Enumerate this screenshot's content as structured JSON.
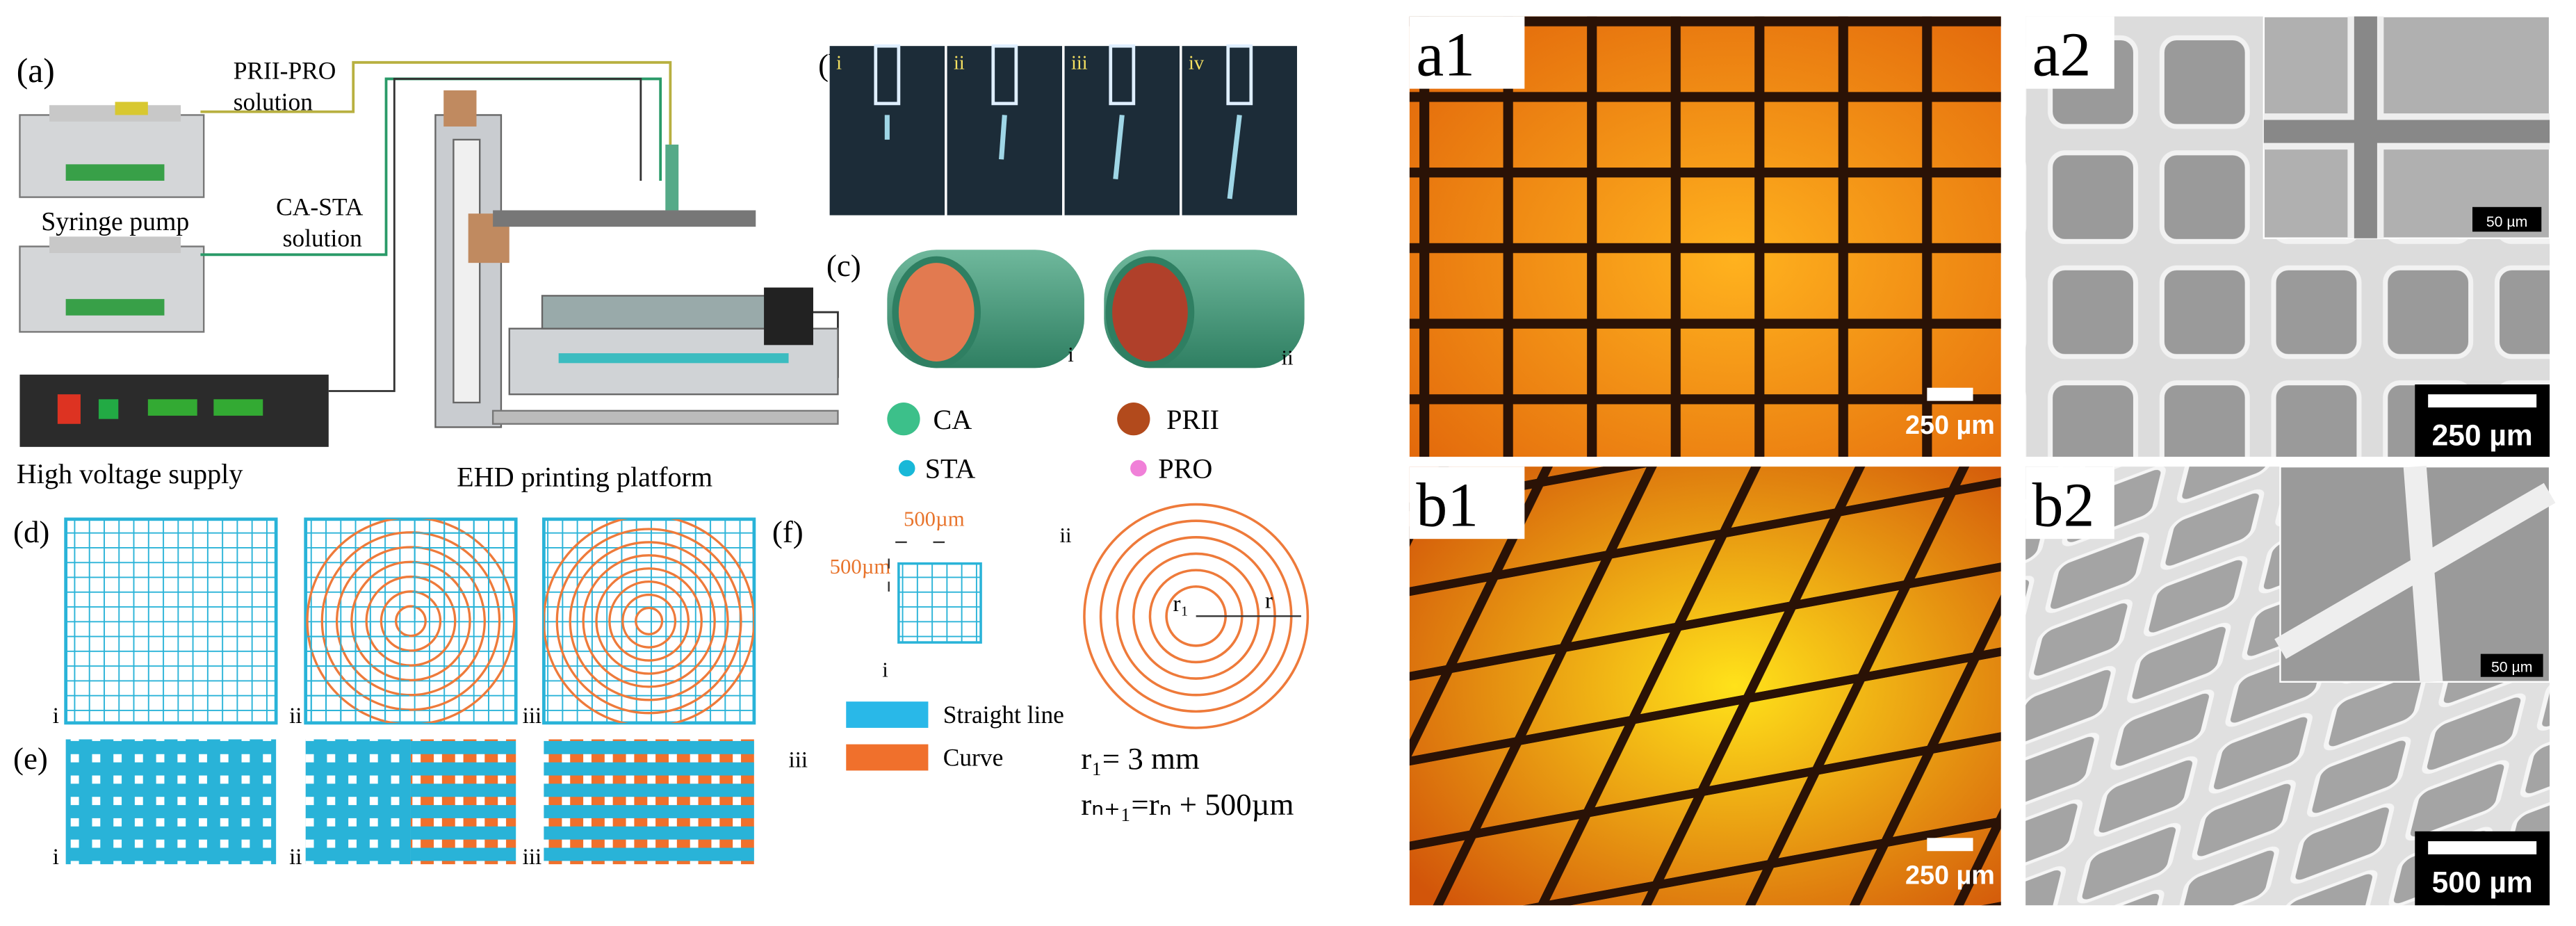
{
  "panel_a": {
    "label": "(a)",
    "solution_1": [
      "PRII-PRO",
      "solution"
    ],
    "solution_2": [
      "CA-STA",
      "solution"
    ],
    "syringe_pump": "Syringe pump",
    "high_voltage": "High voltage supply",
    "platform": "EHD printing platform"
  },
  "panel_b": {
    "label": "(b)",
    "frames": [
      "i",
      "ii",
      "iii",
      "iv"
    ]
  },
  "panel_c": {
    "label": "(c)",
    "views": [
      "i",
      "ii"
    ],
    "legend": [
      "CA",
      "PRII",
      "STA",
      "PRO"
    ]
  },
  "panel_d": {
    "label": "(d)",
    "patterns": [
      "i",
      "ii",
      "iii"
    ]
  },
  "panel_e": {
    "label": "(e)",
    "patterns": [
      "i",
      "ii",
      "iii"
    ]
  },
  "panel_f": {
    "label": "(f)",
    "spacing_x": "500µm",
    "spacing_y": "500µm",
    "sub_i": "i",
    "sub_ii": "ii",
    "sub_iii": "iii",
    "r1_label": "r₁",
    "r_label": "r",
    "legend": [
      "Straight line",
      "Curve"
    ],
    "eq1": "r₁= 3 mm",
    "eq2": "rₙ₊₁=rₙ + 500µm"
  },
  "micrographs": [
    {
      "label": "a1",
      "scale": "250 µm"
    },
    {
      "label": "a2",
      "scale": "250 µm",
      "inset_scale": "50 µm"
    },
    {
      "label": "b1",
      "scale": "250 µm"
    },
    {
      "label": "b2",
      "scale": "500 µm",
      "inset_scale": "50 µm"
    }
  ]
}
